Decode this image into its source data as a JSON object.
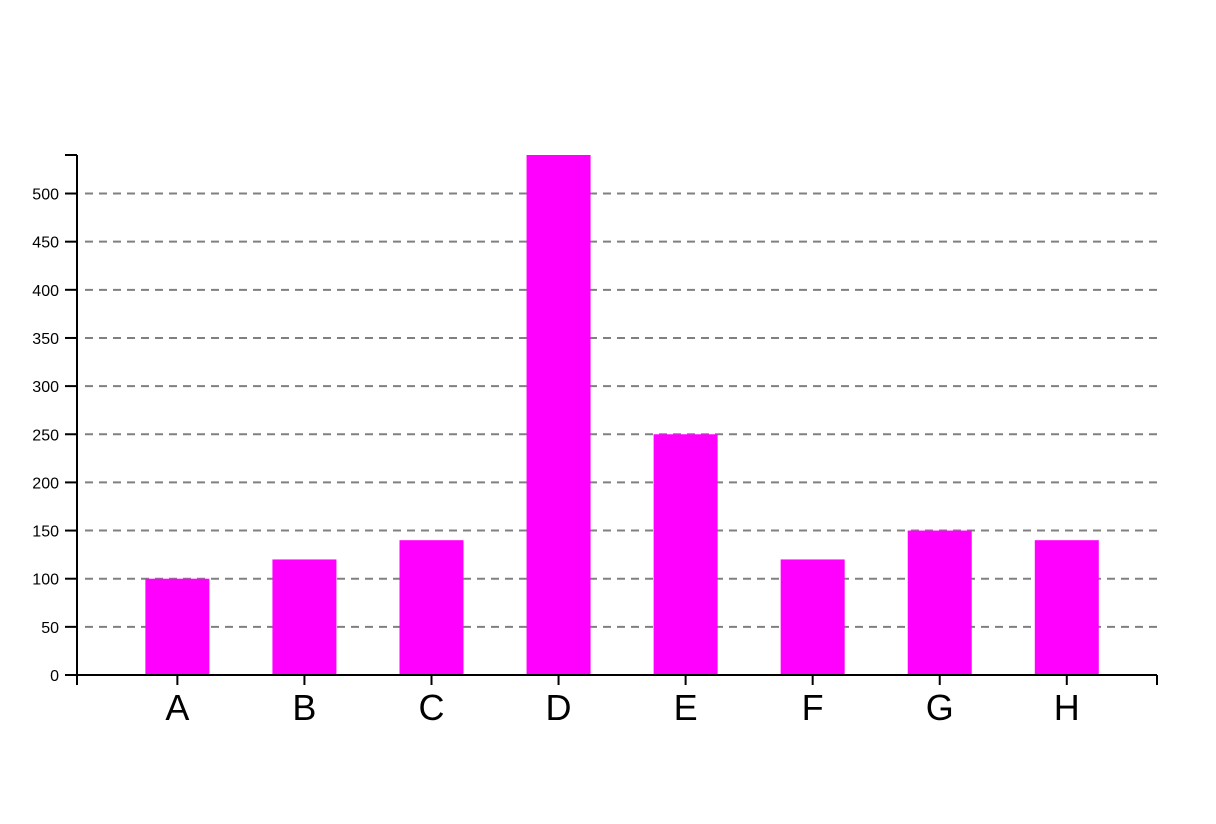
{
  "chart_data": {
    "type": "bar",
    "categories": [
      "A",
      "B",
      "C",
      "D",
      "E",
      "F",
      "G",
      "H"
    ],
    "values": [
      100,
      120,
      140,
      540,
      250,
      120,
      150,
      140
    ],
    "ylim": [
      0,
      540
    ],
    "yticks": [
      0,
      50,
      100,
      150,
      200,
      250,
      300,
      350,
      400,
      450,
      500
    ],
    "grid": true,
    "bar_color": "#ff00ff",
    "grid_color": "#808080",
    "axis_color": "#000000"
  }
}
